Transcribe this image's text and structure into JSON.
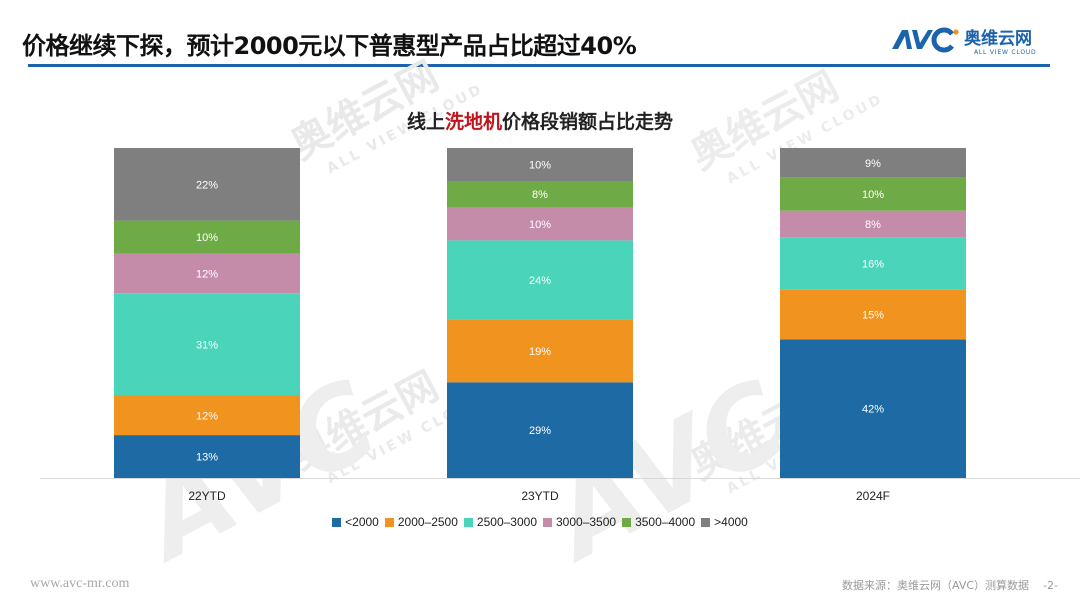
{
  "header": {
    "title": "价格继续下探，预计2000元以下普惠型产品占比超过40%",
    "logo_text": "AVC",
    "logo_cn": "奥维云网",
    "logo_en": "ALL VIEW CLOUD"
  },
  "chart_title": {
    "prefix": "线上",
    "highlight": "洗地机",
    "suffix": "价格段销额占比走势"
  },
  "watermark": {
    "cn": "奥维云网",
    "en": "ALL VIEW CLOUD",
    "brand": "AVC"
  },
  "footer": {
    "url": "www.avc-mr.com",
    "source": "数据来源：奥维云网（AVC）测算数据",
    "page": "-2-"
  },
  "colors": {
    "accent": "#1b63ac",
    "highlight": "#c0151c"
  },
  "chart_data": {
    "type": "bar",
    "stacked": true,
    "percent_stacked": true,
    "title": "线上洗地机价格段销额占比走势",
    "xlabel": "",
    "ylabel": "",
    "ylim": [
      0,
      100
    ],
    "grid": false,
    "legend_position": "bottom",
    "categories": [
      "22YTD",
      "23YTD",
      "2024F"
    ],
    "series": [
      {
        "name": "<2000",
        "color": "#1d6aa5",
        "values": [
          13,
          29,
          42
        ],
        "labels": [
          "13%",
          "29%",
          "42%"
        ]
      },
      {
        "name": "2000-2500",
        "color": "#f0931f",
        "values": [
          12,
          19,
          15
        ],
        "labels": [
          "12%",
          "19%",
          "15%"
        ]
      },
      {
        "name": "2500-3000",
        "color": "#4ad5bb",
        "values": [
          31,
          24,
          16
        ],
        "labels": [
          "31%",
          "24%",
          "16%"
        ]
      },
      {
        "name": "3000-3500",
        "color": "#c58ca9",
        "values": [
          12,
          10,
          8
        ],
        "labels": [
          "12%",
          "10%",
          "8%"
        ]
      },
      {
        "name": "3500-4000",
        "color": "#6eab46",
        "values": [
          10,
          8,
          10
        ],
        "labels": [
          "10%",
          "8%",
          "10%"
        ]
      },
      {
        "name": ">4000",
        "color": "#7f7f7f",
        "values": [
          22,
          10,
          9
        ],
        "labels": [
          "22%",
          "10%",
          "9%"
        ]
      }
    ]
  }
}
